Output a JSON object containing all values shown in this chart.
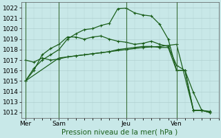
{
  "bg_color": "#c8e8e8",
  "plot_bg_color": "#c8e8e8",
  "grid_color": "#b0d0d0",
  "line_color": "#1a5e1a",
  "marker": "+",
  "ylim": [
    1011.5,
    1022.5
  ],
  "yticks": [
    1012,
    1013,
    1014,
    1015,
    1016,
    1017,
    1018,
    1019,
    1020,
    1021,
    1022
  ],
  "xlabel": "Pression niveau de la mer( hPa )",
  "xlabel_fontsize": 7.5,
  "xlabel_color": "#1a5e1a",
  "tick_fontsize": 6.5,
  "day_labels": [
    "Mer",
    "Sam",
    "Jeu",
    "Ven"
  ],
  "day_positions": [
    0,
    4,
    12,
    18
  ],
  "vline_positions": [
    0,
    4,
    12,
    18
  ],
  "xlim": [
    -0.5,
    23
  ],
  "series": [
    {
      "x": [
        0,
        1,
        2,
        3,
        4,
        5,
        6,
        7,
        8,
        9,
        10,
        11,
        12,
        13,
        14,
        15,
        16,
        17,
        18,
        19,
        20,
        21,
        22
      ],
      "y": [
        1015.0,
        1016.2,
        1017.0,
        1017.5,
        1018.0,
        1019.0,
        1019.5,
        1019.9,
        1020.0,
        1020.3,
        1020.5,
        1021.9,
        1021.95,
        1021.5,
        1021.3,
        1021.2,
        1020.4,
        1019.0,
        1016.0,
        1016.0,
        1013.9,
        1012.2,
        1012.1
      ]
    },
    {
      "x": [
        0,
        1,
        2,
        3,
        4,
        5,
        6,
        7,
        8,
        9,
        10,
        11,
        12,
        13,
        14,
        15,
        16,
        17,
        18,
        19,
        20,
        21,
        22
      ],
      "y": [
        1015.0,
        1016.0,
        1017.5,
        1018.1,
        1018.5,
        1019.2,
        1019.2,
        1019.0,
        1019.2,
        1019.3,
        1019.0,
        1018.8,
        1018.7,
        1018.5,
        1018.6,
        1018.8,
        1018.5,
        1018.3,
        1016.5,
        1016.0,
        1012.2,
        1012.2,
        1012.0
      ]
    },
    {
      "x": [
        0,
        4,
        6,
        8,
        10,
        12,
        14,
        16,
        18,
        20,
        21,
        22
      ],
      "y": [
        1015.0,
        1017.2,
        1017.4,
        1017.6,
        1017.8,
        1018.0,
        1018.2,
        1018.3,
        1018.5,
        1012.2,
        1012.2,
        1012.0
      ]
    },
    {
      "x": [
        0,
        1,
        2,
        3,
        4,
        5,
        6,
        7,
        8,
        9,
        10,
        11,
        12,
        13,
        14,
        15,
        16,
        17,
        18,
        19,
        20,
        21,
        22
      ],
      "y": [
        1017.0,
        1016.8,
        1017.2,
        1017.0,
        1017.1,
        1017.3,
        1017.4,
        1017.5,
        1017.6,
        1017.7,
        1017.8,
        1018.0,
        1018.1,
        1018.2,
        1018.3,
        1018.3,
        1018.2,
        1018.2,
        1016.0,
        1016.0,
        1012.2,
        1012.2,
        1012.0
      ]
    }
  ]
}
